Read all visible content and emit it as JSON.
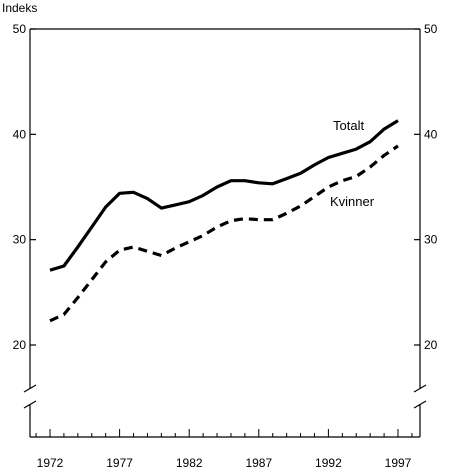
{
  "chart_data": {
    "type": "line",
    "ylabel": "Indeks",
    "ylim": [
      15,
      50
    ],
    "yticks": [
      20,
      30,
      40,
      50
    ],
    "ytick_labels": [
      "20",
      "30",
      "40",
      "50"
    ],
    "axis_break": true,
    "xlim": [
      1971,
      1998
    ],
    "xticks": [
      1972,
      1977,
      1982,
      1987,
      1992,
      1997
    ],
    "xtick_labels": [
      "1972",
      "1977",
      "1982",
      "1987",
      "1992",
      "1997"
    ],
    "grid": false,
    "x": [
      1972,
      1973,
      1974,
      1975,
      1976,
      1977,
      1978,
      1979,
      1980,
      1981,
      1982,
      1983,
      1984,
      1985,
      1986,
      1987,
      1988,
      1989,
      1990,
      1991,
      1992,
      1993,
      1994,
      1995,
      1996,
      1997
    ],
    "series": [
      {
        "name": "Totalt",
        "style": "solid",
        "color": "#000000",
        "values": [
          27.1,
          27.5,
          29.3,
          31.2,
          33.1,
          34.4,
          34.5,
          33.9,
          33.0,
          33.3,
          33.6,
          34.2,
          35.0,
          35.6,
          35.6,
          35.4,
          35.3,
          35.8,
          36.3,
          37.1,
          37.8,
          38.2,
          38.6,
          39.3,
          40.5,
          41.3
        ]
      },
      {
        "name": "Kvinner",
        "style": "dashed",
        "color": "#000000",
        "values": [
          22.3,
          22.9,
          24.5,
          26.2,
          27.9,
          29.0,
          29.3,
          28.9,
          28.5,
          29.2,
          29.8,
          30.4,
          31.2,
          31.8,
          32.0,
          31.9,
          31.9,
          32.5,
          33.2,
          34.1,
          35.0,
          35.6,
          36.0,
          36.9,
          38.0,
          38.9
        ]
      }
    ]
  }
}
